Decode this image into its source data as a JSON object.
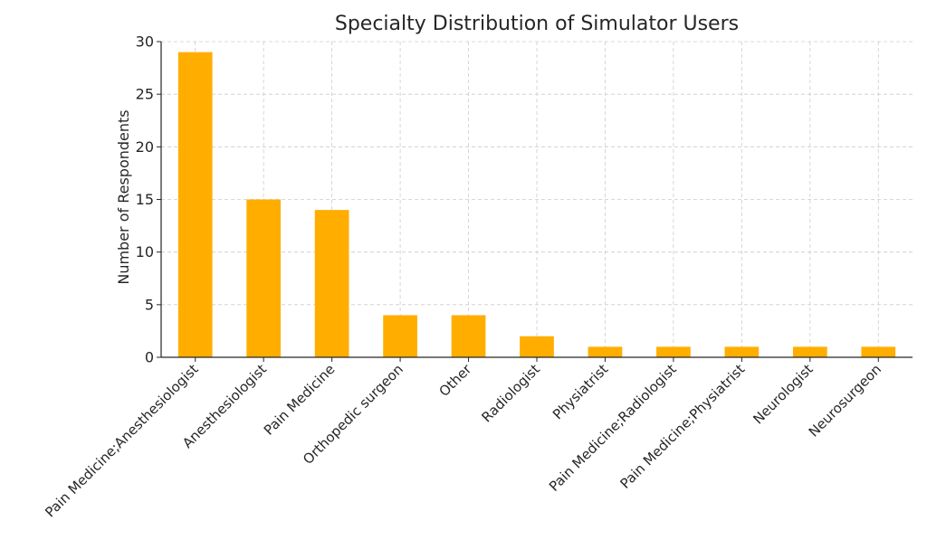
{
  "chart_data": {
    "type": "bar",
    "title": "Specialty Distribution of Simulator Users",
    "xlabel": "",
    "ylabel": "Number of Respondents",
    "categories": [
      "Pain Medicine;Anesthesiologist",
      "Anesthesiologist",
      "Pain Medicine",
      "Orthopedic surgeon",
      "Other",
      "Radiologist",
      "Physiatrist",
      "Pain Medicine;Radiologist",
      "Pain Medicine;Physiatrist",
      "Neurologist",
      "Neurosurgeon"
    ],
    "values": [
      29,
      15,
      14,
      4,
      4,
      2,
      1,
      1,
      1,
      1,
      1
    ],
    "ylim": [
      0,
      30
    ],
    "yticks": [
      0,
      5,
      10,
      15,
      20,
      25,
      30
    ],
    "grid": true,
    "bar_color": "#ffae00",
    "grid_color": "#cccccc",
    "axis_color": "#262626",
    "text_color": "#262626"
  }
}
